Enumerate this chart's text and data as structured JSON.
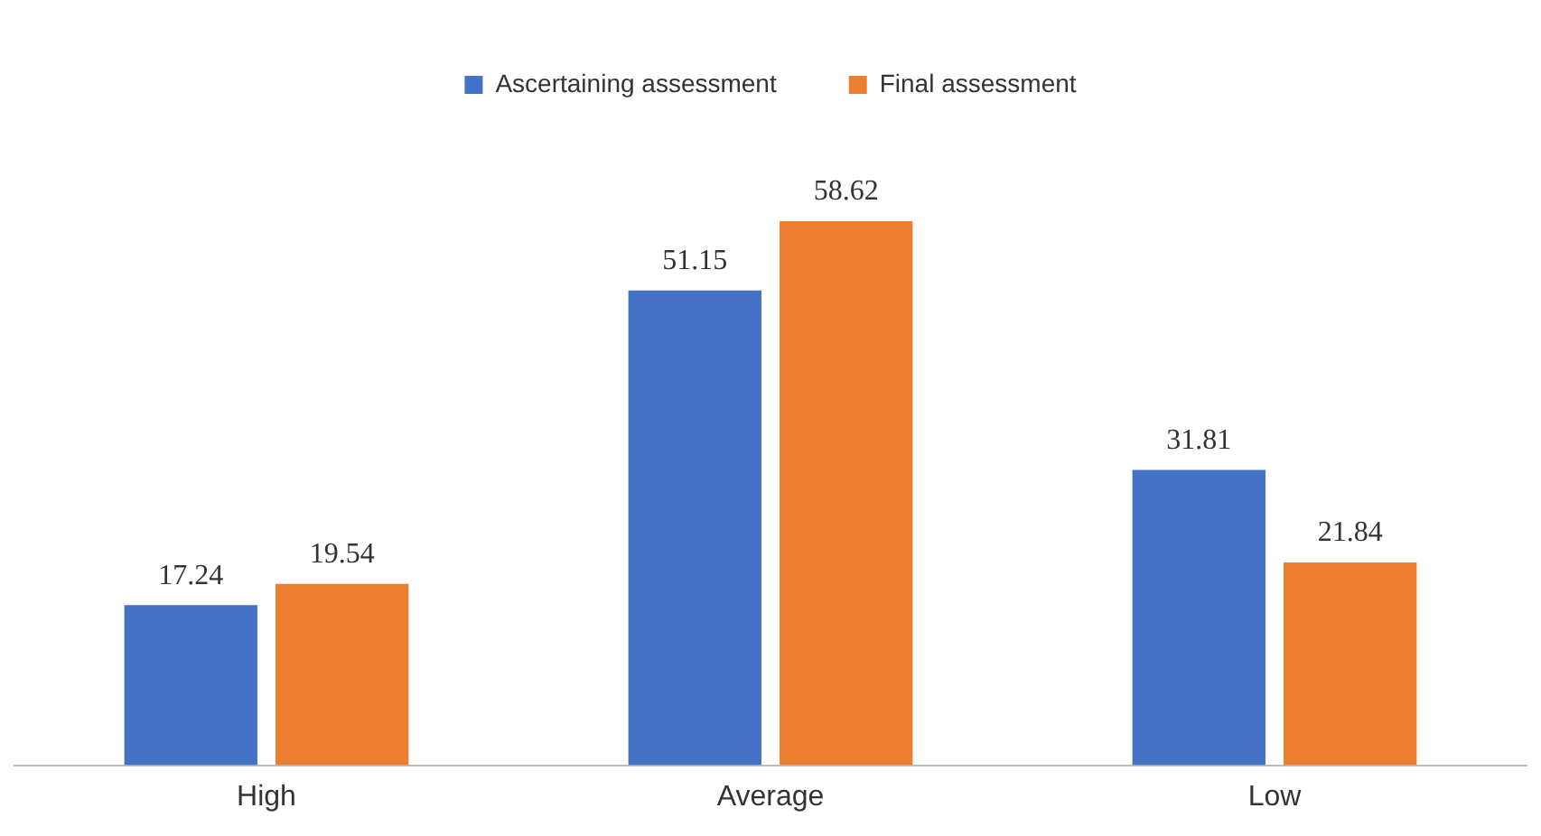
{
  "chart_data": {
    "type": "bar",
    "categories": [
      "High",
      "Average",
      "Low"
    ],
    "series": [
      {
        "name": "Ascertaining assessment",
        "color": "#4472c4",
        "values": [
          17.24,
          51.15,
          31.81
        ]
      },
      {
        "name": "Final assessment",
        "color": "#ed7d31",
        "values": [
          19.54,
          58.62,
          21.84
        ]
      }
    ],
    "data_labels": true,
    "legend": "top",
    "grid": false
  }
}
